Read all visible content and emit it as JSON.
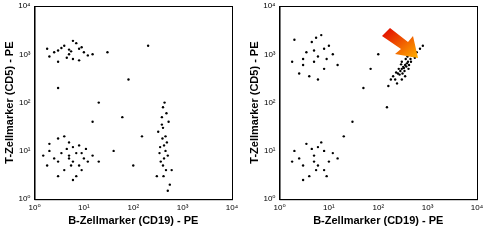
{
  "chart_data": [
    {
      "type": "scatter",
      "x_label": "B-Zellmarker (CD19) - PE",
      "y_label": "T-Zellmarker (CD5) - PE",
      "log": true,
      "grid": false,
      "color": "#000000",
      "marker": "circle",
      "xlim": [
        1,
        10000
      ],
      "ylim": [
        1,
        10000
      ],
      "xticks": [
        {
          "value": 1,
          "label": "10⁰"
        },
        {
          "value": 10,
          "label": "10¹"
        },
        {
          "value": 100,
          "label": "10²"
        },
        {
          "value": 1000,
          "label": "10³"
        },
        {
          "value": 10000,
          "label": "10⁴"
        }
      ],
      "yticks": [
        {
          "value": 1,
          "label": "10⁰"
        },
        {
          "value": 10,
          "label": "10¹"
        },
        {
          "value": 100,
          "label": "10²"
        },
        {
          "value": 1000,
          "label": "10³"
        },
        {
          "value": 10000,
          "label": "10⁴"
        }
      ],
      "x": [
        3,
        5,
        8,
        2,
        4,
        6,
        10,
        3,
        7,
        5,
        12,
        2.5,
        4.5,
        9,
        6,
        3.5,
        15,
        5.5,
        8,
        1.8,
        3,
        5,
        8,
        2,
        4,
        6,
        10,
        3,
        7,
        5,
        12,
        2.5,
        4.5,
        9,
        6,
        3.5,
        15,
        5.5,
        8,
        1.8,
        4,
        7,
        11,
        2,
        6,
        3,
        20,
        9,
        1.5,
        5,
        300,
        400,
        500,
        350,
        450,
        400,
        550,
        380,
        420,
        480,
        320,
        600,
        400,
        450,
        360,
        520,
        410,
        390,
        470,
        430,
        340,
        500,
        380,
        460,
        420,
        40,
        80,
        20,
        150,
        30,
        60,
        200,
        3,
        15,
        100
      ],
      "values": [
        1200,
        1000,
        1300,
        900,
        1500,
        800,
        1100,
        700,
        1700,
        1250,
        950,
        1100,
        850,
        1400,
        1900,
        1350,
        1000,
        1150,
        750,
        1300,
        6,
        8,
        5,
        10,
        4,
        12,
        7,
        3,
        9,
        15,
        6,
        7,
        11,
        4,
        6,
        9,
        8,
        5,
        13,
        5,
        20,
        3,
        11,
        14,
        2.5,
        18,
        6,
        9,
        8,
        7,
        3,
        5,
        8,
        12,
        20,
        30,
        2,
        50,
        7,
        15,
        25,
        4,
        80,
        10,
        6,
        40,
        3,
        18,
        60,
        100,
        9,
        1.5,
        35,
        4,
        13,
        10,
        300,
        100,
        20,
        1100,
        50,
        1500,
        200,
        40,
        5
      ]
    },
    {
      "type": "scatter",
      "x_label": "B-Zellmarker (CD19) - PE",
      "y_label": "T-Zellmarker (CD5) - PE",
      "log": true,
      "grid": false,
      "color": "#000000",
      "marker": "circle",
      "xlim": [
        1,
        10000
      ],
      "ylim": [
        1,
        10000
      ],
      "xticks": [
        {
          "value": 1,
          "label": "10⁰"
        },
        {
          "value": 10,
          "label": "10¹"
        },
        {
          "value": 100,
          "label": "10²"
        },
        {
          "value": 1000,
          "label": "10³"
        },
        {
          "value": 10000,
          "label": "10⁴"
        }
      ],
      "yticks": [
        {
          "value": 1,
          "label": "10⁰"
        },
        {
          "value": 10,
          "label": "10¹"
        },
        {
          "value": 100,
          "label": "10²"
        },
        {
          "value": 1000,
          "label": "10³"
        },
        {
          "value": 10000,
          "label": "10⁴"
        }
      ],
      "x": [
        3,
        5,
        8,
        2,
        4,
        6,
        10,
        3,
        7,
        5,
        12,
        2.5,
        4.5,
        9,
        6,
        3.5,
        15,
        5.5,
        8,
        1.8,
        300,
        350,
        250,
        400,
        200,
        450,
        500,
        280,
        320,
        380,
        220,
        600,
        260,
        340,
        420,
        300,
        360,
        240,
        180,
        700,
        310,
        330,
        270,
        390,
        460,
        550,
        290,
        230,
        410,
        370,
        480,
        160,
        800,
        350,
        300,
        3,
        5,
        8,
        2,
        4,
        6,
        10,
        3,
        7,
        5,
        12,
        2.5,
        4.5,
        9,
        6,
        3.5,
        15,
        5.5,
        8,
        1.8,
        50,
        100,
        30,
        150,
        70,
        20
      ],
      "values": [
        800,
        1200,
        500,
        2000,
        350,
        900,
        1500,
        600,
        2500,
        700,
        1000,
        400,
        1800,
        800,
        300,
        1100,
        600,
        2200,
        1300,
        700,
        500,
        600,
        400,
        700,
        350,
        800,
        1000,
        450,
        550,
        650,
        300,
        1100,
        500,
        450,
        600,
        700,
        800,
        250,
        300,
        1300,
        400,
        520,
        380,
        900,
        700,
        850,
        620,
        420,
        500,
        560,
        950,
        220,
        1500,
        350,
        300,
        5,
        8,
        4,
        10,
        3,
        12,
        6,
        2.5,
        15,
        6,
        9,
        7,
        11,
        3,
        5,
        14,
        7,
        4,
        10,
        6,
        200,
        1000,
        40,
        80,
        500,
        20
      ]
    }
  ]
}
